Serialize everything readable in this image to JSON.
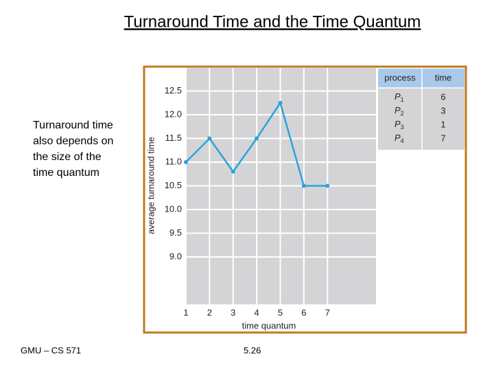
{
  "slide": {
    "title": "Turnaround Time and the Time Quantum",
    "body": [
      "Turnaround time",
      "also depends on",
      "the size of the",
      "time quantum"
    ],
    "footer_left": "GMU – CS 571",
    "footer_right": "5.26"
  },
  "chart_data": {
    "type": "line",
    "x_label": "time quantum",
    "y_label": "average turnaround time",
    "x": [
      1,
      2,
      3,
      4,
      5,
      6,
      7
    ],
    "values": [
      11.0,
      11.5,
      10.8,
      11.5,
      12.25,
      10.5,
      10.5
    ],
    "color": "#2aa3df",
    "xlim": [
      1,
      9
    ],
    "xticks": [
      1,
      2,
      3,
      4,
      5,
      6,
      7
    ],
    "ylim": [
      8,
      13
    ],
    "yticks": [
      {
        "value": 9,
        "label": "9.0"
      },
      9.5,
      {
        "value": 10,
        "label": "10.0"
      },
      10.5,
      {
        "value": 11,
        "label": "11.0"
      },
      11.5,
      {
        "value": 12,
        "label": "12.0"
      },
      12.5
    ],
    "grid": true
  },
  "table": {
    "header": [
      "process",
      "time"
    ],
    "rows": [
      {
        "process": "P",
        "index": "1",
        "time": 6
      },
      {
        "process": "P",
        "index": "2",
        "time": 3
      },
      {
        "process": "P",
        "index": "3",
        "time": 1
      },
      {
        "process": "P",
        "index": "4",
        "time": 7
      }
    ]
  }
}
